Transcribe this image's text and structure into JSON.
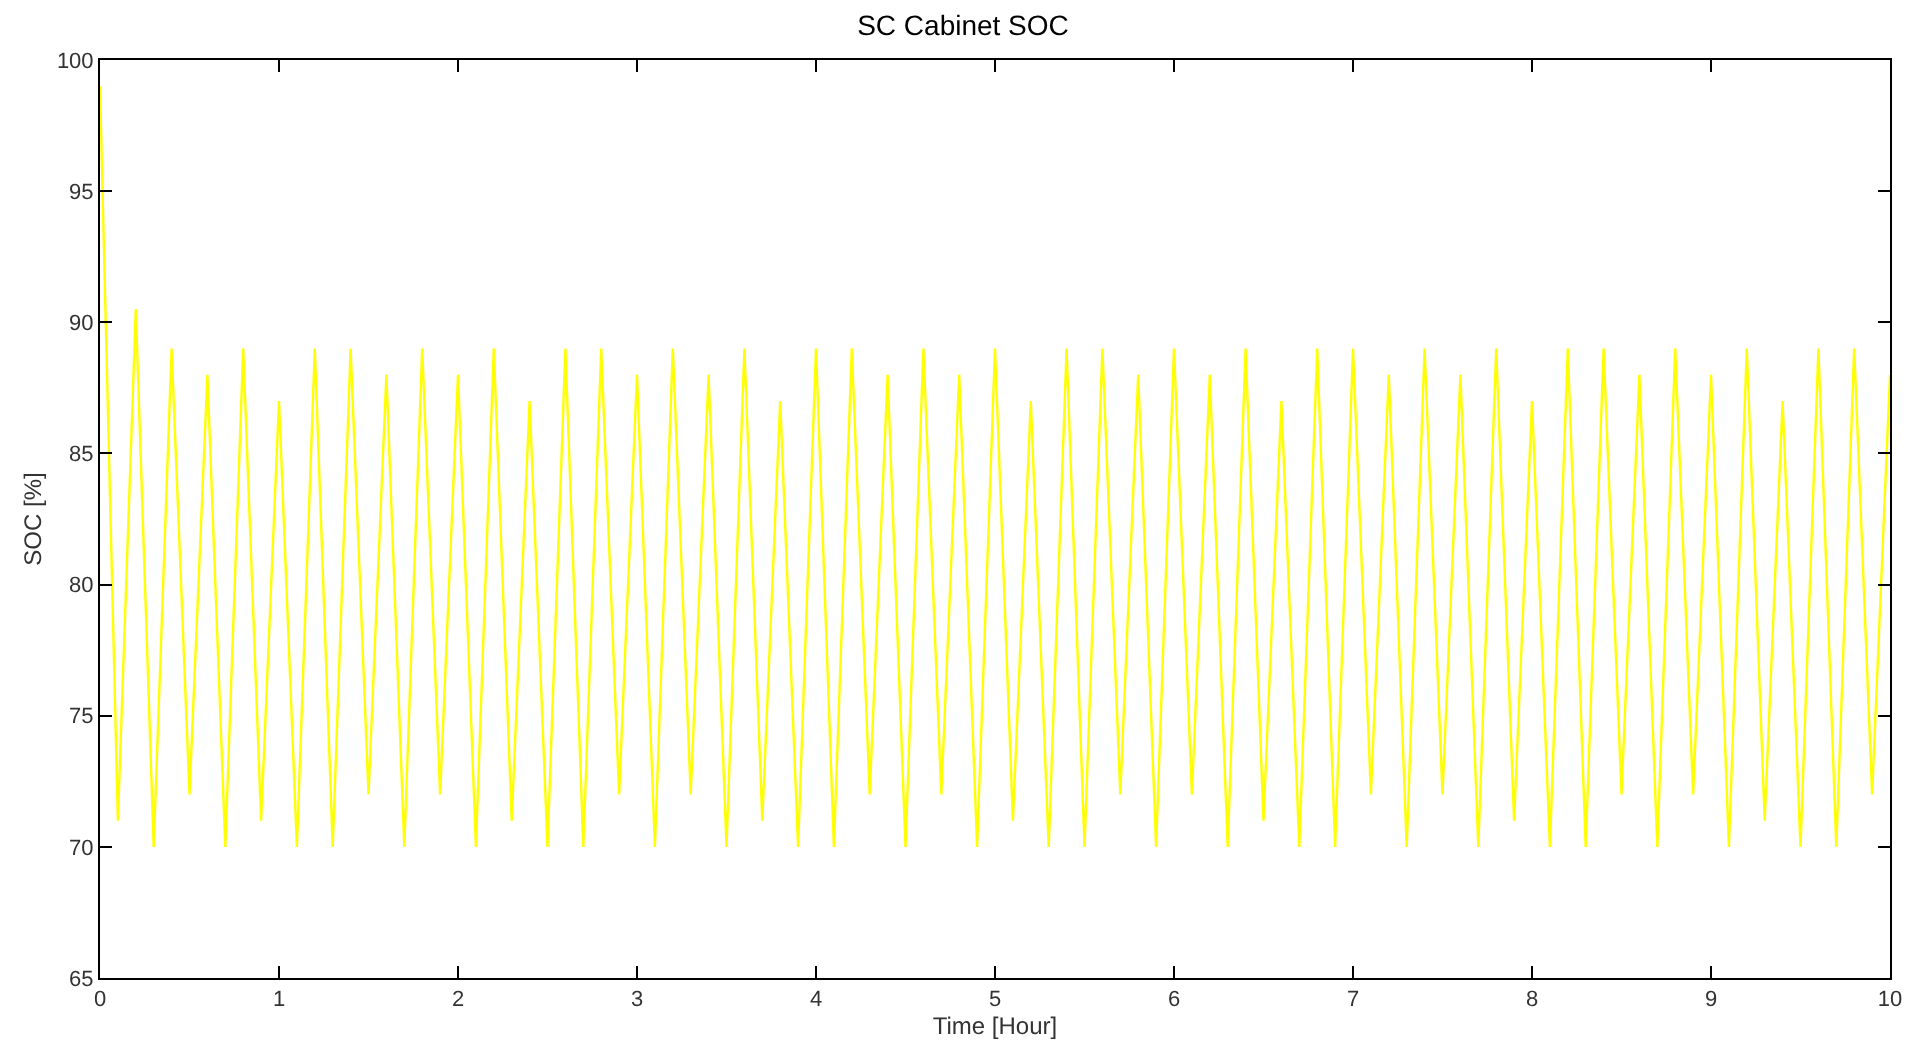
{
  "chart_data": {
    "type": "line",
    "title": "SC Cabinet SOC",
    "xlabel": "Time [Hour]",
    "ylabel": "SOC [%]",
    "xlim": [
      0,
      10
    ],
    "xticks": [
      0,
      1,
      2,
      3,
      4,
      5,
      6,
      7,
      8,
      9,
      10
    ],
    "ylim": [
      65,
      100
    ],
    "yticks": [
      65,
      70,
      75,
      80,
      85,
      90,
      95,
      100
    ],
    "marker": "none",
    "line_style": "solid",
    "series": [
      {
        "color": "#ffff00",
        "x": [
          0,
          0.1,
          0.2,
          0.3,
          0.4,
          0.5,
          0.6,
          0.7,
          0.8,
          0.9,
          1.0,
          1.1,
          1.2,
          1.3,
          1.4,
          1.5,
          1.6,
          1.7,
          1.8,
          1.9,
          2.0,
          2.1,
          2.2,
          2.3,
          2.4,
          2.5,
          2.6,
          2.7,
          2.8,
          2.9,
          3.0,
          3.1,
          3.2,
          3.3,
          3.4,
          3.5,
          3.6,
          3.7,
          3.8,
          3.9,
          4.0,
          4.1,
          4.2,
          4.3,
          4.4,
          4.5,
          4.6,
          4.7,
          4.8,
          4.9,
          5.0,
          5.1,
          5.2,
          5.3,
          5.4,
          5.5,
          5.6,
          5.7,
          5.8,
          5.9,
          6.0,
          6.1,
          6.2,
          6.3,
          6.4,
          6.5,
          6.6,
          6.7,
          6.8,
          6.9,
          7.0,
          7.1,
          7.2,
          7.3,
          7.4,
          7.5,
          7.6,
          7.7,
          7.8,
          7.9,
          8.0,
          8.1,
          8.2,
          8.3,
          8.4,
          8.5,
          8.6,
          8.7,
          8.8,
          8.9,
          9.0,
          9.1,
          9.2,
          9.3,
          9.4,
          9.5,
          9.6,
          9.7,
          9.8,
          9.9,
          10.0
        ],
        "values": [
          99,
          71,
          90.5,
          70,
          89,
          72,
          88,
          70,
          89,
          71,
          87,
          70,
          89,
          70,
          89,
          72,
          88,
          70,
          89,
          72,
          88,
          70,
          89,
          71,
          87,
          70,
          89,
          70,
          89,
          72,
          88,
          70,
          89,
          72,
          88,
          70,
          89,
          71,
          87,
          70,
          89,
          70,
          89,
          72,
          88,
          70,
          89,
          72,
          88,
          70,
          89,
          71,
          87,
          70,
          89,
          70,
          89,
          72,
          88,
          70,
          89,
          72,
          88,
          70,
          89,
          71,
          87,
          70,
          89,
          70,
          89,
          72,
          88,
          70,
          89,
          72,
          88,
          70,
          89,
          71,
          87,
          70,
          89,
          70,
          89,
          72,
          88,
          70,
          89,
          72,
          88,
          70,
          89,
          71,
          87,
          70,
          89,
          70,
          89,
          72,
          88
        ]
      }
    ]
  }
}
